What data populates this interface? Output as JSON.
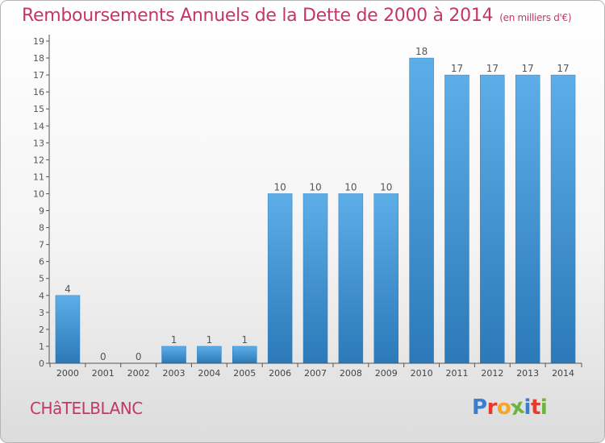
{
  "header": {
    "title": "Remboursements Annuels de la Dette de 2000 à 2014",
    "unit": "(en milliers d'€)"
  },
  "commune": "CHâTELBLANC",
  "logo": {
    "text": "Proxiti",
    "letters": [
      {
        "char": "P",
        "color": "#3b7dcf"
      },
      {
        "char": "r",
        "color": "#e8392f"
      },
      {
        "char": "o",
        "color": "#f5a623"
      },
      {
        "char": "x",
        "color": "#6cb33f"
      },
      {
        "char": "i",
        "color": "#3b7dcf"
      },
      {
        "char": "t",
        "color": "#e8392f"
      },
      {
        "char": "i",
        "color": "#6cb33f"
      }
    ]
  },
  "chart_data": {
    "type": "bar",
    "title": "Remboursements Annuels de la Dette de 2000 à 2014",
    "categories": [
      "2000",
      "2001",
      "2002",
      "2003",
      "2004",
      "2005",
      "2006",
      "2007",
      "2008",
      "2009",
      "2010",
      "2011",
      "2012",
      "2013",
      "2014"
    ],
    "values": [
      4,
      0,
      0,
      1,
      1,
      1,
      10,
      10,
      10,
      10,
      18,
      17,
      17,
      17,
      17
    ],
    "ylim": [
      0,
      19
    ],
    "yticks": [
      0,
      1,
      2,
      3,
      4,
      5,
      6,
      7,
      8,
      9,
      10,
      11,
      12,
      13,
      14,
      15,
      16,
      17,
      18,
      19
    ],
    "grid": false,
    "colors": {
      "bar_top": "#5daee8",
      "bar_bottom": "#2b79b8",
      "axis": "#555555",
      "label": "#555555"
    }
  }
}
